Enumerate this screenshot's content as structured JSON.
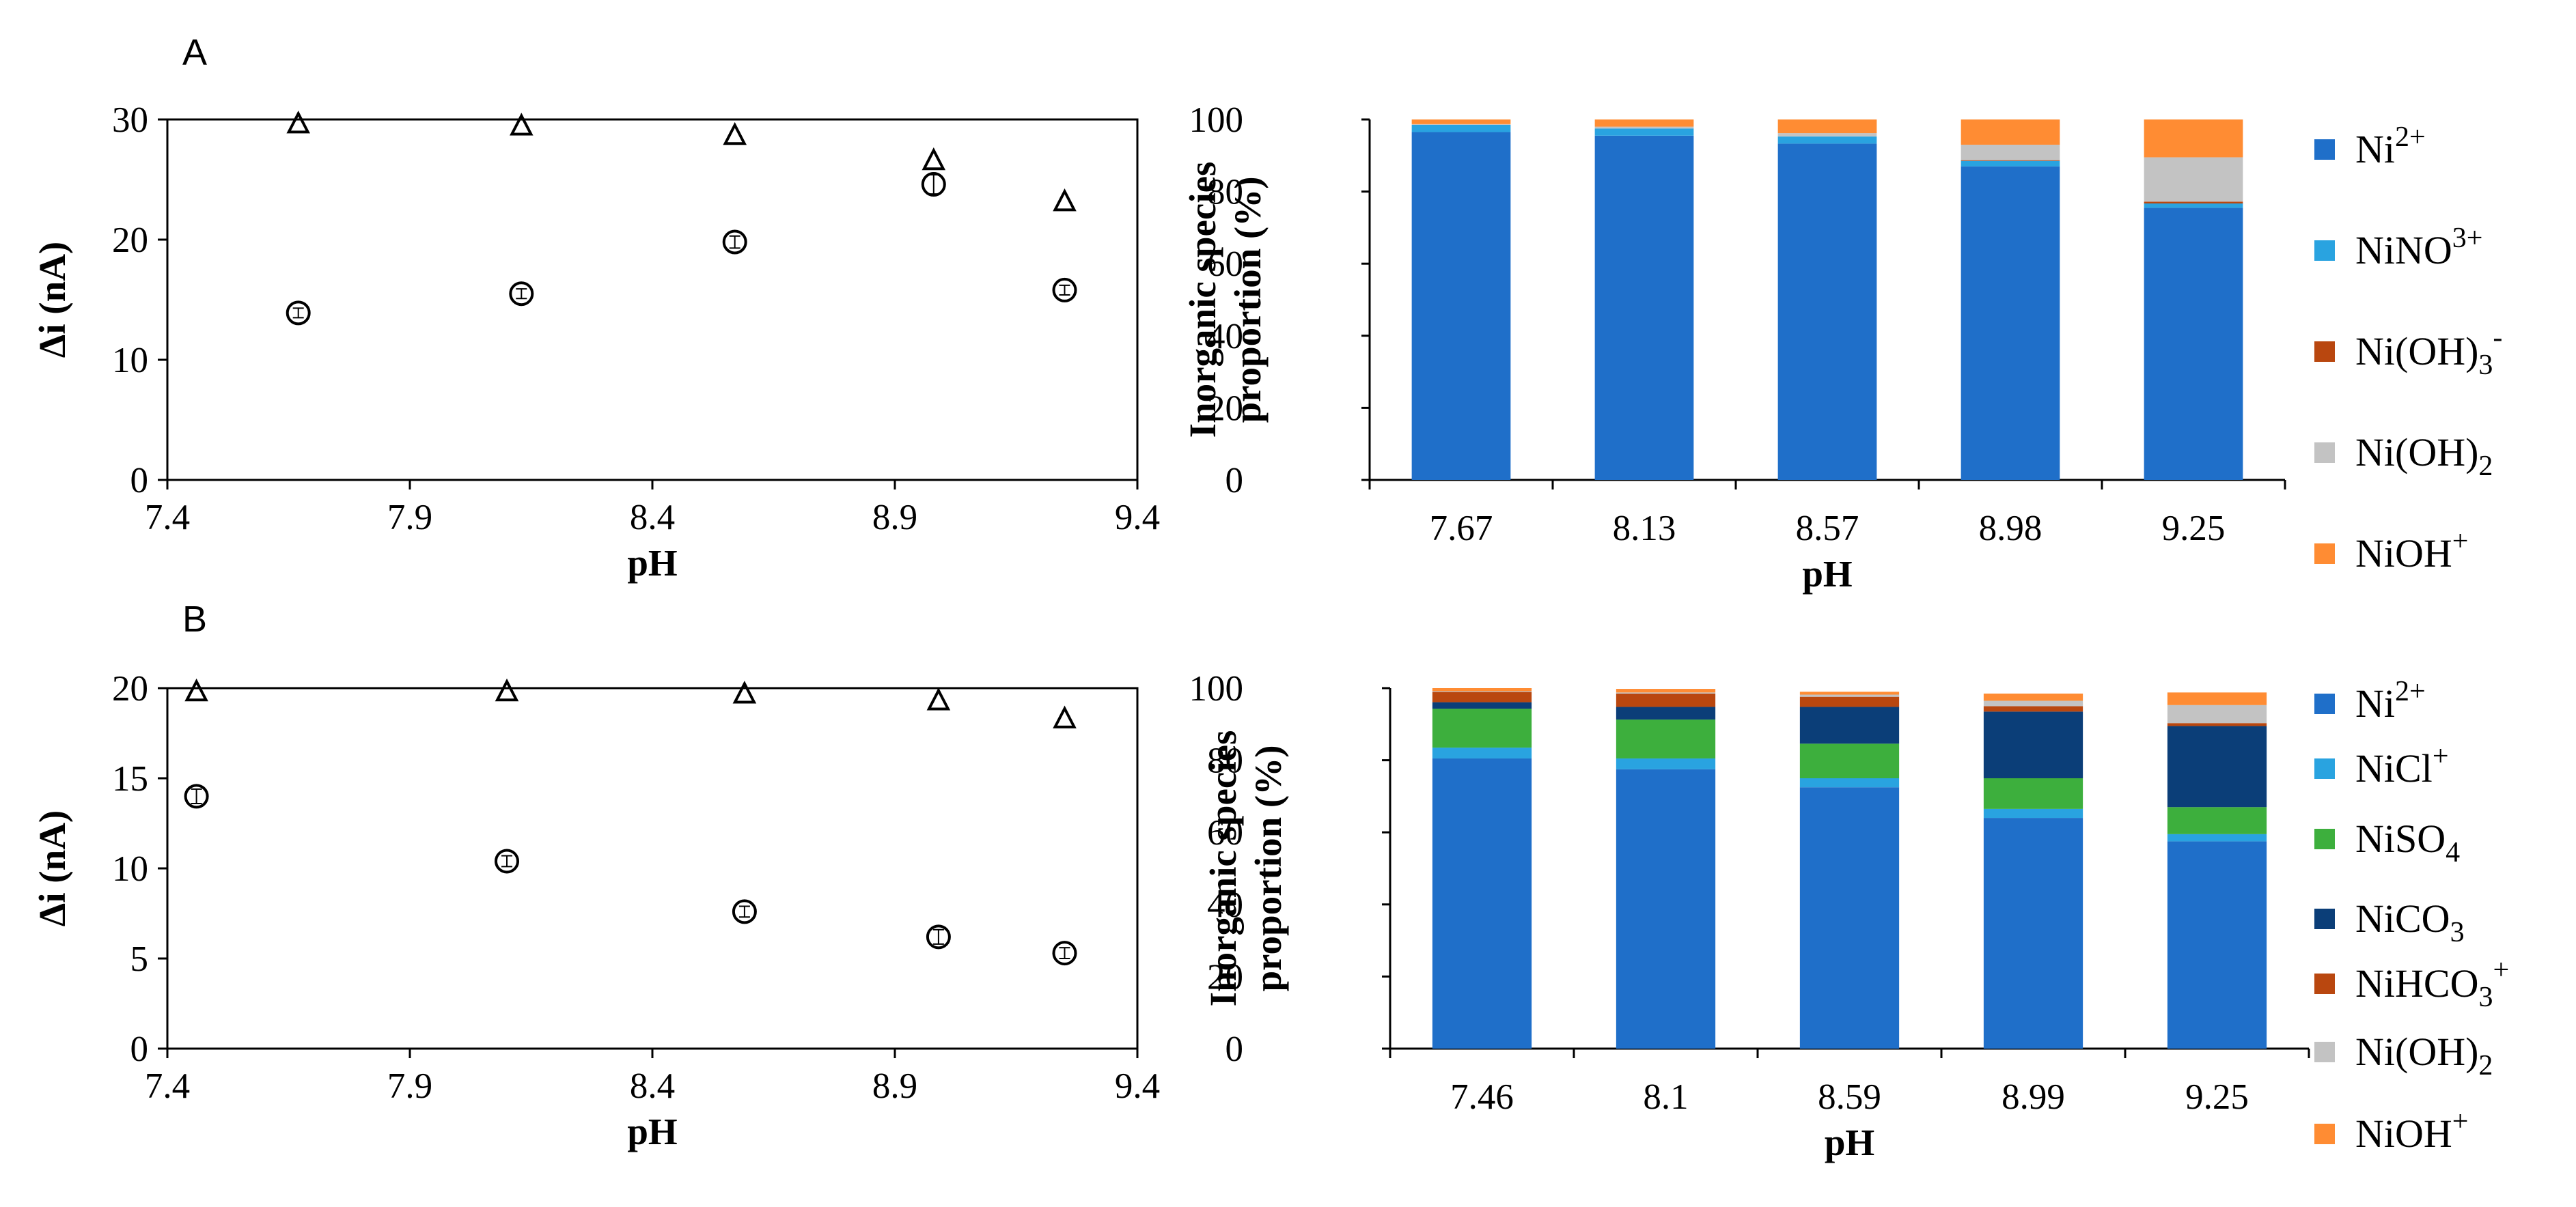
{
  "chart_data": [
    {
      "panel": "A",
      "type": "scatter",
      "xlabel": "pH",
      "ylabel": "Δi (nA)",
      "xlim": [
        7.4,
        9.4
      ],
      "xticks": [
        "7.4",
        "7.9",
        "8.4",
        "8.9",
        "9.4"
      ],
      "ylim": [
        0,
        30
      ],
      "yticks": [
        "0",
        "10",
        "20",
        "30"
      ],
      "right_ylim": [
        0,
        100
      ],
      "series": [
        {
          "name": "Δi",
          "marker": "circle",
          "axis": "left",
          "x": [
            7.67,
            8.13,
            8.57,
            8.98,
            9.25
          ],
          "y": [
            13.9,
            15.5,
            19.8,
            24.6,
            15.8
          ],
          "err": [
            0.4,
            0.4,
            0.5,
            0.8,
            0.4
          ]
        },
        {
          "name": "Ni2+ proportion",
          "marker": "triangle",
          "axis": "right",
          "x": [
            7.67,
            8.13,
            8.57,
            8.98,
            9.25
          ],
          "y": [
            98.8,
            98.2,
            95.6,
            88.6,
            77.2
          ]
        }
      ]
    },
    {
      "panel": "A",
      "type": "bar",
      "stacked": true,
      "xlabel": "pH",
      "ylabel": [
        "Inorganic species",
        "proportion (%)"
      ],
      "ylim": [
        0,
        100
      ],
      "yticks": [
        "0",
        "20",
        "40",
        "60",
        "80",
        "100"
      ],
      "categories": [
        "7.67",
        "8.13",
        "8.57",
        "8.98",
        "9.25"
      ],
      "series": [
        {
          "name": "Ni2+",
          "color": "#1f6fc9",
          "values": [
            96.5,
            95.5,
            93.3,
            87.0,
            75.5
          ]
        },
        {
          "name": "NiNO3+",
          "color": "#29a3e0",
          "values": [
            2.0,
            2.0,
            2.0,
            1.5,
            1.2
          ]
        },
        {
          "name": "Ni(OH)3-",
          "color": "#b9470f",
          "values": [
            0.0,
            0.0,
            0.0,
            0.2,
            0.5
          ]
        },
        {
          "name": "Ni(OH)2",
          "color": "#c3c3c3",
          "values": [
            0.2,
            0.5,
            0.9,
            4.3,
            12.3
          ]
        },
        {
          "name": "NiOH+",
          "color": "#ff8c33",
          "values": [
            1.3,
            2.0,
            3.8,
            7.0,
            10.5
          ]
        }
      ],
      "legend": [
        {
          "base": "Ni",
          "sup": "2+"
        },
        {
          "base": "NiNO",
          "sup": "3+"
        },
        {
          "base": "Ni(OH)",
          "sub": "3",
          "sup": "-"
        },
        {
          "base": "Ni(OH)",
          "sub": "2"
        },
        {
          "base": "NiOH",
          "sup": "+"
        }
      ]
    },
    {
      "panel": "B",
      "type": "scatter",
      "xlabel": "pH",
      "ylabel": "Δi (nA)",
      "xlim": [
        7.4,
        9.4
      ],
      "xticks": [
        "7.4",
        "7.9",
        "8.4",
        "8.9",
        "9.4"
      ],
      "ylim": [
        0,
        20
      ],
      "yticks": [
        "0",
        "5",
        "10",
        "15",
        "20"
      ],
      "right_ylim": [
        0,
        100
      ],
      "series": [
        {
          "name": "Δi",
          "marker": "circle",
          "axis": "left",
          "x": [
            7.46,
            8.1,
            8.59,
            8.99,
            9.25
          ],
          "y": [
            14.0,
            10.4,
            7.6,
            6.2,
            5.3
          ],
          "err": [
            0.4,
            0.3,
            0.3,
            0.4,
            0.3
          ]
        },
        {
          "name": "Ni2+ proportion",
          "marker": "triangle",
          "axis": "right",
          "x": [
            7.46,
            8.1,
            8.59,
            8.99,
            9.25
          ],
          "y": [
            99.0,
            99.0,
            98.4,
            96.5,
            91.5
          ]
        }
      ]
    },
    {
      "panel": "B",
      "type": "bar",
      "stacked": true,
      "xlabel": "pH",
      "ylabel": [
        "Inorganic species",
        "proportion (%)"
      ],
      "ylim": [
        0,
        100
      ],
      "yticks": [
        "0",
        "20",
        "40",
        "60",
        "80",
        "100"
      ],
      "categories": [
        "7.46",
        "8.1",
        "8.59",
        "8.99",
        "9.25"
      ],
      "series": [
        {
          "name": "Ni2+",
          "color": "#1f6fc9",
          "values": [
            80.5,
            77.5,
            72.5,
            64.0,
            57.5
          ]
        },
        {
          "name": "NiCl+",
          "color": "#29a3e0",
          "values": [
            3.0,
            3.0,
            2.5,
            2.5,
            2.0
          ]
        },
        {
          "name": "NiSO4",
          "color": "#3daf3d",
          "values": [
            10.8,
            10.8,
            9.6,
            8.5,
            7.5
          ]
        },
        {
          "name": "NiCO3",
          "color": "#0b3e78",
          "values": [
            1.8,
            3.5,
            10.2,
            18.5,
            22.5
          ]
        },
        {
          "name": "NiHCO3+",
          "color": "#b9470f",
          "values": [
            2.9,
            3.7,
            2.8,
            1.5,
            0.8
          ]
        },
        {
          "name": "Ni(OH)2",
          "color": "#c3c3c3",
          "values": [
            0.2,
            0.3,
            0.6,
            1.5,
            5.0
          ]
        },
        {
          "name": "NiOH+",
          "color": "#ff8c33",
          "values": [
            0.8,
            1.0,
            0.8,
            2.0,
            3.5
          ]
        }
      ],
      "legend": [
        {
          "base": "Ni",
          "sup": "2+"
        },
        {
          "base": "NiCl",
          "sup": "+"
        },
        {
          "base": "NiSO",
          "sub": "4"
        },
        {
          "base": "NiCO",
          "sub": "3"
        },
        {
          "base": "NiHCO",
          "sub": "3",
          "sup": "+"
        },
        {
          "base": "Ni(OH)",
          "sub": "2"
        },
        {
          "base": "NiOH",
          "sup": "+"
        }
      ]
    }
  ]
}
